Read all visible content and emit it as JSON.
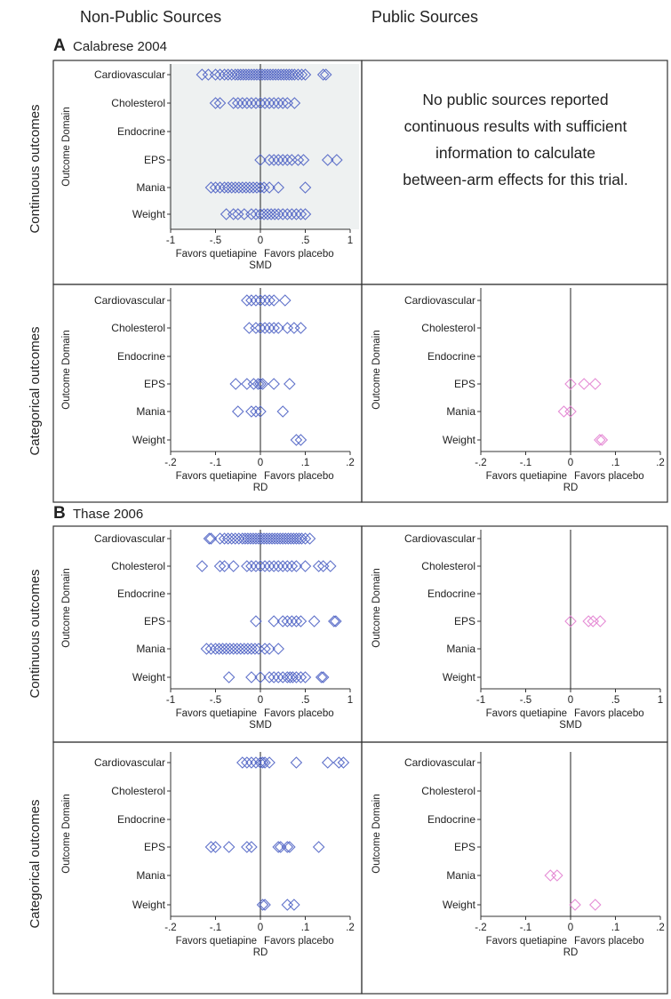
{
  "headers": {
    "non_public": "Non-Public Sources",
    "public": "Public Sources",
    "row_continuous": "Continuous outcomes",
    "row_categorical": "Categorical outcomes"
  },
  "section_a": {
    "letter": "A",
    "title": "Calabrese 2004"
  },
  "section_b": {
    "letter": "B",
    "title": "Thase 2006"
  },
  "no_data_note": {
    "line1": "No public sources reported",
    "line2": "continuous results with sufficient",
    "line3": "information to calculate",
    "line4": "between-arm effects for this trial."
  },
  "colors": {
    "non_public": "#4f63c4",
    "public": "#e27fd0",
    "panel_bg": "#eef1f1",
    "border": "#333333"
  },
  "chart_data": [
    {
      "id": "a_nonpublic_cont",
      "type": "scatter",
      "marker": "diamond",
      "ylabel": "Outcome Domain",
      "xlabel": "SMD",
      "favors_left": "Favors quetiapine",
      "favors_right": "Favors placebo",
      "categories": [
        "Cardiovascular",
        "Cholesterol",
        "Endocrine",
        "EPS",
        "Mania",
        "Weight"
      ],
      "xlim": [
        -1,
        1
      ],
      "xticks": [
        -1,
        -0.5,
        0,
        0.5,
        1
      ],
      "xticklabels": [
        "-1",
        "-.5",
        "0",
        ".5",
        "1"
      ],
      "points": {
        "Cardiovascular": [
          -0.65,
          -0.58,
          -0.5,
          -0.45,
          -0.4,
          -0.36,
          -0.32,
          -0.28,
          -0.25,
          -0.22,
          -0.19,
          -0.16,
          -0.13,
          -0.1,
          -0.07,
          -0.04,
          -0.01,
          0.02,
          0.05,
          0.08,
          0.11,
          0.14,
          0.17,
          0.2,
          0.23,
          0.26,
          0.29,
          0.32,
          0.35,
          0.38,
          0.42,
          0.46,
          0.5,
          0.7,
          0.73
        ],
        "Cholesterol": [
          -0.5,
          -0.45,
          -0.3,
          -0.25,
          -0.2,
          -0.15,
          -0.1,
          -0.05,
          0.0,
          0.05,
          0.1,
          0.15,
          0.2,
          0.25,
          0.3,
          0.38
        ],
        "Endocrine": [],
        "EPS": [
          0.0,
          0.1,
          0.15,
          0.2,
          0.25,
          0.3,
          0.35,
          0.42,
          0.48,
          0.75,
          0.85
        ],
        "Mania": [
          -0.55,
          -0.5,
          -0.45,
          -0.4,
          -0.36,
          -0.32,
          -0.28,
          -0.24,
          -0.2,
          -0.16,
          -0.12,
          -0.08,
          -0.04,
          0.0,
          0.04,
          0.1,
          0.2,
          0.5
        ],
        "Weight": [
          -0.38,
          -0.3,
          -0.25,
          -0.18,
          -0.1,
          -0.05,
          0.0,
          0.04,
          0.08,
          0.12,
          0.16,
          0.2,
          0.25,
          0.3,
          0.35,
          0.4,
          0.45,
          0.5
        ]
      }
    },
    {
      "id": "a_nonpublic_cat",
      "type": "scatter",
      "marker": "diamond",
      "ylabel": "Outcome Domain",
      "xlabel": "RD",
      "favors_left": "Favors quetiapine",
      "favors_right": "Favors placebo",
      "categories": [
        "Cardiovascular",
        "Cholesterol",
        "Endocrine",
        "EPS",
        "Mania",
        "Weight"
      ],
      "xlim": [
        -0.2,
        0.2
      ],
      "xticks": [
        -0.2,
        -0.1,
        0,
        0.1,
        0.2
      ],
      "xticklabels": [
        "-.2",
        "-.1",
        "0",
        ".1",
        ".2"
      ],
      "points": {
        "Cardiovascular": [
          -0.03,
          -0.02,
          -0.01,
          0.0,
          0.01,
          0.02,
          0.03,
          0.055
        ],
        "Cholesterol": [
          -0.025,
          -0.01,
          0.0,
          0.01,
          0.02,
          0.03,
          0.04,
          0.06,
          0.075,
          0.09
        ],
        "Endocrine": [],
        "EPS": [
          -0.055,
          -0.03,
          -0.015,
          -0.005,
          0.0,
          0.005,
          0.03,
          0.065
        ],
        "Mania": [
          -0.05,
          -0.02,
          -0.01,
          0.0,
          0.05
        ],
        "Weight": [
          0.08,
          0.09
        ]
      }
    },
    {
      "id": "a_public_cat",
      "type": "scatter",
      "marker": "diamond",
      "ylabel": "Outcome Domain",
      "xlabel": "RD",
      "favors_left": "Favors quetiapine",
      "favors_right": "Favors placebo",
      "categories": [
        "Cardiovascular",
        "Cholesterol",
        "Endocrine",
        "EPS",
        "Mania",
        "Weight"
      ],
      "xlim": [
        -0.2,
        0.2
      ],
      "xticks": [
        -0.2,
        -0.1,
        0,
        0.1,
        0.2
      ],
      "xticklabels": [
        "-.2",
        "-.1",
        "0",
        ".1",
        ".2"
      ],
      "points": {
        "Cardiovascular": [],
        "Cholesterol": [],
        "Endocrine": [],
        "EPS": [
          0.0,
          0.03,
          0.055
        ],
        "Mania": [
          -0.015,
          0.0
        ],
        "Weight": [
          0.065,
          0.07
        ]
      }
    },
    {
      "id": "b_nonpublic_cont",
      "type": "scatter",
      "marker": "diamond",
      "ylabel": "Outcome Domain",
      "xlabel": "SMD",
      "favors_left": "Favors quetiapine",
      "favors_right": "Favors placebo",
      "categories": [
        "Cardiovascular",
        "Cholesterol",
        "Endocrine",
        "EPS",
        "Mania",
        "Weight"
      ],
      "xlim": [
        -1,
        1
      ],
      "xticks": [
        -1,
        -0.5,
        0,
        0.5,
        1
      ],
      "xticklabels": [
        "-1",
        "-.5",
        "0",
        ".5",
        "1"
      ],
      "points": {
        "Cardiovascular": [
          -0.57,
          -0.55,
          -0.45,
          -0.4,
          -0.36,
          -0.32,
          -0.28,
          -0.24,
          -0.2,
          -0.17,
          -0.14,
          -0.11,
          -0.08,
          -0.05,
          -0.02,
          0.01,
          0.04,
          0.07,
          0.1,
          0.13,
          0.16,
          0.19,
          0.22,
          0.25,
          0.28,
          0.31,
          0.34,
          0.37,
          0.4,
          0.43,
          0.46,
          0.5,
          0.55
        ],
        "Cholesterol": [
          -0.65,
          -0.45,
          -0.4,
          -0.3,
          -0.15,
          -0.1,
          -0.05,
          0.0,
          0.05,
          0.1,
          0.15,
          0.2,
          0.25,
          0.3,
          0.35,
          0.4,
          0.5,
          0.65,
          0.7,
          0.78
        ],
        "Endocrine": [],
        "EPS": [
          -0.05,
          0.15,
          0.25,
          0.3,
          0.35,
          0.4,
          0.45,
          0.6,
          0.82,
          0.84
        ],
        "Mania": [
          -0.6,
          -0.55,
          -0.5,
          -0.46,
          -0.42,
          -0.38,
          -0.34,
          -0.3,
          -0.26,
          -0.22,
          -0.18,
          -0.14,
          -0.1,
          -0.06,
          -0.02,
          0.05,
          0.1,
          0.2
        ],
        "Weight": [
          -0.35,
          -0.1,
          0.0,
          0.1,
          0.15,
          0.2,
          0.25,
          0.3,
          0.33,
          0.36,
          0.4,
          0.45,
          0.5,
          0.68,
          0.7
        ]
      }
    },
    {
      "id": "b_public_cont",
      "type": "scatter",
      "marker": "diamond",
      "ylabel": "Outcome Domain",
      "xlabel": "SMD",
      "favors_left": "Favors quetiapine",
      "favors_right": "Favors placebo",
      "categories": [
        "Cardiovascular",
        "Cholesterol",
        "Endocrine",
        "EPS",
        "Mania",
        "Weight"
      ],
      "xlim": [
        -1,
        1
      ],
      "xticks": [
        -1,
        -0.5,
        0,
        0.5,
        1
      ],
      "xticklabels": [
        "-1",
        "-.5",
        "0",
        ".5",
        "1"
      ],
      "points": {
        "Cardiovascular": [],
        "Cholesterol": [],
        "Endocrine": [],
        "EPS": [
          0.0,
          0.2,
          0.25,
          0.33
        ],
        "Mania": [],
        "Weight": []
      }
    },
    {
      "id": "b_nonpublic_cat",
      "type": "scatter",
      "marker": "diamond",
      "ylabel": "Outcome Domain",
      "xlabel": "RD",
      "favors_left": "Favors quetiapine",
      "favors_right": "Favors placebo",
      "categories": [
        "Cardiovascular",
        "Cholesterol",
        "Endocrine",
        "EPS",
        "Mania",
        "Weight"
      ],
      "xlim": [
        -0.2,
        0.2
      ],
      "xticks": [
        -0.2,
        -0.1,
        0,
        0.1,
        0.2
      ],
      "xticklabels": [
        "-.2",
        "-.1",
        "0",
        ".1",
        ".2"
      ],
      "points": {
        "Cardiovascular": [
          -0.04,
          -0.03,
          -0.02,
          -0.01,
          0.0,
          0.005,
          0.01,
          0.02,
          0.08,
          0.15,
          0.175,
          0.185
        ],
        "Cholesterol": [],
        "Endocrine": [],
        "EPS": [
          -0.11,
          -0.1,
          -0.07,
          -0.03,
          -0.02,
          0.04,
          0.045,
          0.06,
          0.065,
          0.13
        ],
        "Mania": [],
        "Weight": [
          0.005,
          0.01,
          0.06,
          0.075
        ]
      }
    },
    {
      "id": "b_public_cat",
      "type": "scatter",
      "marker": "diamond",
      "ylabel": "Outcome Domain",
      "xlabel": "RD",
      "favors_left": "Favors quetiapine",
      "favors_right": "Favors placebo",
      "categories": [
        "Cardiovascular",
        "Cholesterol",
        "Endocrine",
        "EPS",
        "Mania",
        "Weight"
      ],
      "xlim": [
        -0.2,
        0.2
      ],
      "xticks": [
        -0.2,
        -0.1,
        0,
        0.1,
        0.2
      ],
      "xticklabels": [
        "-.2",
        "-.1",
        "0",
        ".1",
        ".2"
      ],
      "points": {
        "Cardiovascular": [],
        "Cholesterol": [],
        "Endocrine": [],
        "EPS": [],
        "Mania": [
          -0.045,
          -0.03
        ],
        "Weight": [
          0.01,
          0.055
        ]
      }
    }
  ]
}
